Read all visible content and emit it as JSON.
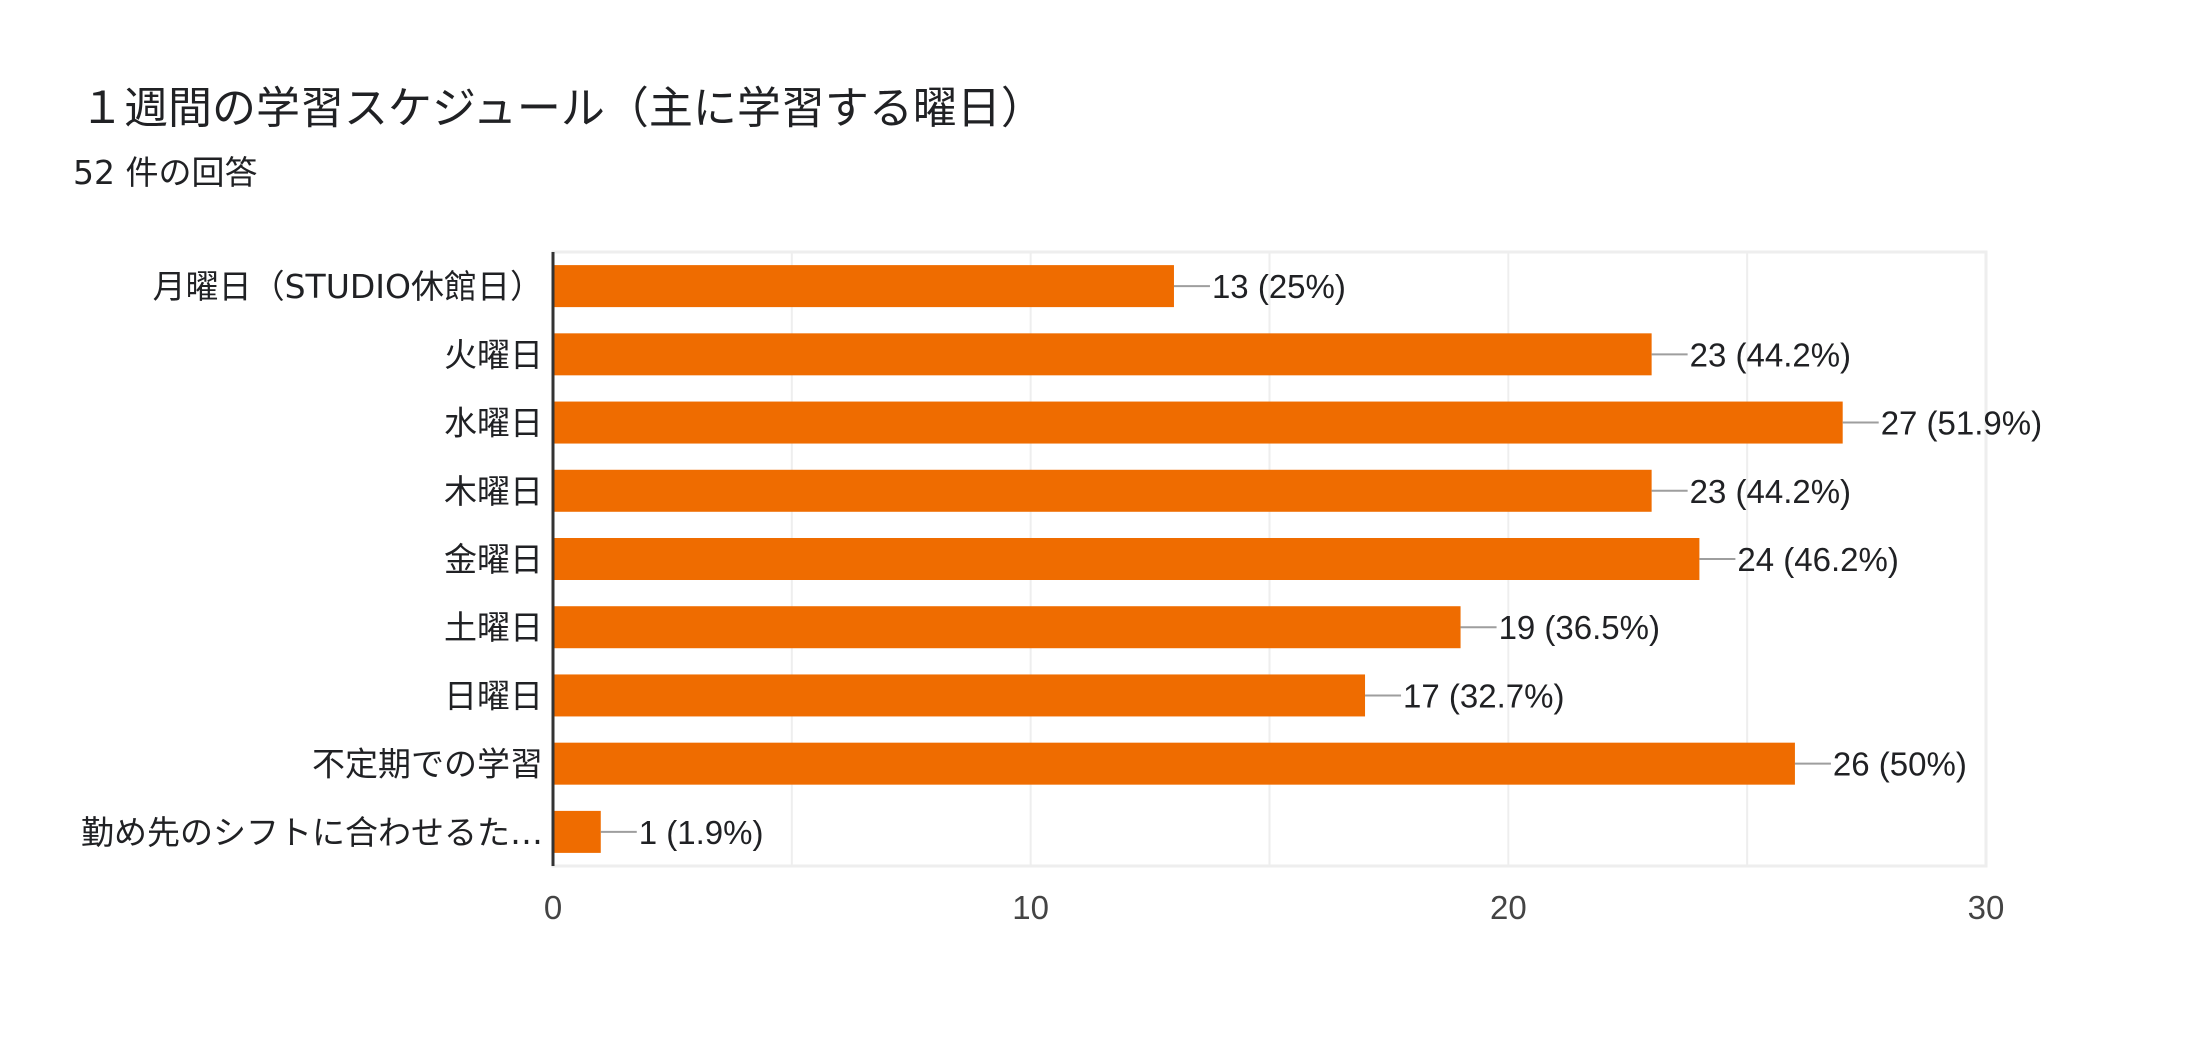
{
  "header": {
    "title": "１週間の学習スケジュール（主に学習する曜日）",
    "subtitle": "52 件の回答"
  },
  "colors": {
    "bar": "#ef6c00",
    "grid": "#eeeeee",
    "baseline": "#333333",
    "connector": "#9e9e9e"
  },
  "chart_data": {
    "type": "bar",
    "orientation": "horizontal",
    "title": "１週間の学習スケジュール（主に学習する曜日）",
    "subtitle": "52 件の回答",
    "xlim": [
      0,
      30
    ],
    "x_ticks": [
      0,
      10,
      20,
      30
    ],
    "grid": true,
    "categories": [
      "月曜日（STUDIO休館日）",
      "火曜日",
      "水曜日",
      "木曜日",
      "金曜日",
      "土曜日",
      "日曜日",
      "不定期での学習",
      "勤め先のシフトに合わせるた…"
    ],
    "values": [
      13,
      23,
      27,
      23,
      24,
      19,
      17,
      26,
      1
    ],
    "data_labels": [
      "13 (25%)",
      "23 (44.2%)",
      "27 (51.9%)",
      "23 (44.2%)",
      "24 (46.2%)",
      "19 (36.5%)",
      "17 (32.7%)",
      "26 (50%)",
      "1 (1.9%)"
    ]
  }
}
